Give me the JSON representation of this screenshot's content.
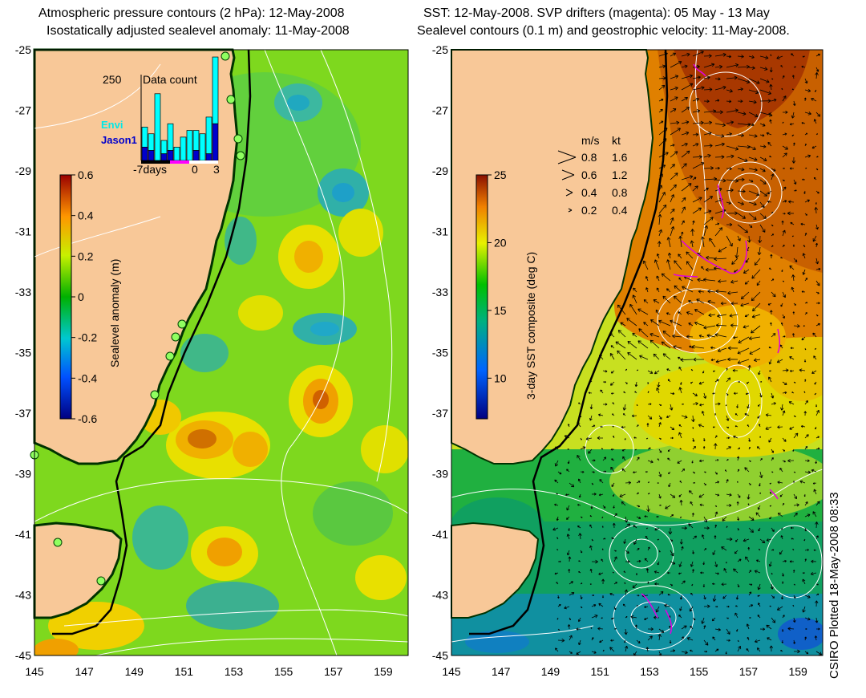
{
  "left_panel": {
    "title_line1": "Atmospheric pressure contours (2 hPa): 12-May-2008",
    "title_line2": "Isostatically adjusted sealevel anomaly: 11-May-2008",
    "colorbar": {
      "label": "Sealevel anomaly (m)",
      "min": -0.6,
      "max": 0.6,
      "ticks": [
        "0.6",
        "0.4",
        "0.2",
        "0",
        "-0.2",
        "-0.4",
        "-0.6"
      ]
    },
    "data_count": {
      "title": "Data count",
      "ymax_label": "250",
      "x_labels": [
        "-7days",
        "0",
        "3"
      ],
      "legend": [
        {
          "name": "Envi",
          "color": "#00ffff"
        },
        {
          "name": "Jason1",
          "color": "#0000cc"
        }
      ],
      "envi_counts": [
        60,
        50,
        200,
        40,
        80,
        40,
        70,
        90,
        60,
        80,
        110,
        200
      ],
      "jason_counts": [
        40,
        30,
        0,
        20,
        30,
        0,
        0,
        0,
        30,
        0,
        20,
        110
      ]
    }
  },
  "right_panel": {
    "title_line1": "SST: 12-May-2008. SVP drifters (magenta): 05 May - 13 May",
    "title_line2": "Sealevel contours (0.1 m) and geostrophic velocity: 11-May-2008.",
    "colorbar": {
      "label": "3-day SST composite (deg C)",
      "min": 7,
      "max": 25,
      "ticks": [
        "25",
        "20",
        "15",
        "10"
      ]
    },
    "velocity_legend": {
      "header_ms": "m/s",
      "header_kt": "kt",
      "rows": [
        {
          "ms": "0.8",
          "kt": "1.6"
        },
        {
          "ms": "0.6",
          "kt": "1.2"
        },
        {
          "ms": "0.4",
          "kt": "0.8"
        },
        {
          "ms": "0.2",
          "kt": "0.4"
        }
      ]
    }
  },
  "axes": {
    "lon_ticks": [
      "145",
      "147",
      "149",
      "151",
      "153",
      "155",
      "157",
      "159"
    ],
    "lat_ticks": [
      "-25",
      "-27",
      "-29",
      "-31",
      "-33",
      "-35",
      "-37",
      "-39",
      "-41",
      "-43",
      "-45"
    ],
    "lon_range": [
      145,
      160
    ],
    "lat_range": [
      -45,
      -25
    ]
  },
  "credit": "CSIRO Plotted 18-May-2008 08:33"
}
